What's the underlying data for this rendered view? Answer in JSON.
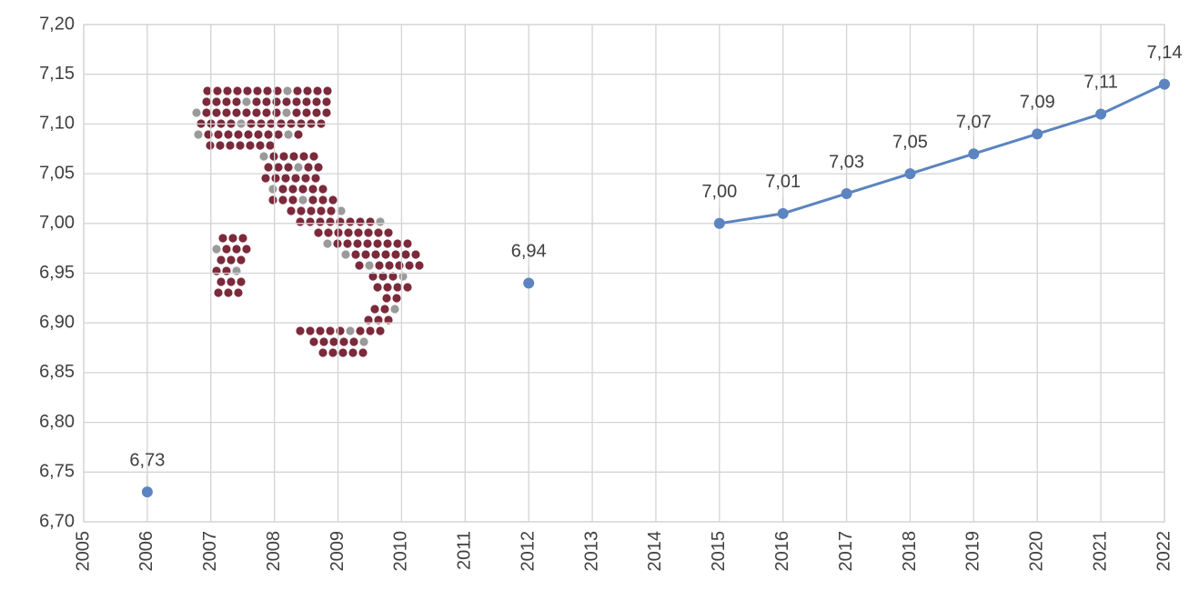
{
  "chart_data": {
    "type": "line",
    "categories": [
      "2005",
      "2006",
      "2007",
      "2008",
      "2009",
      "2010",
      "2011",
      "2012",
      "2013",
      "2014",
      "2015",
      "2016",
      "2017",
      "2018",
      "2019",
      "2020",
      "2021",
      "2022"
    ],
    "series": [
      {
        "color": "#5b84c0",
        "values": [
          null,
          6.73,
          null,
          null,
          null,
          null,
          null,
          6.94,
          null,
          null,
          7.0,
          7.01,
          7.03,
          7.05,
          7.07,
          7.09,
          7.11,
          7.14
        ],
        "value_labels": [
          null,
          "6,73",
          null,
          null,
          null,
          null,
          null,
          "6,94",
          null,
          null,
          "7,00",
          "7,01",
          "7,03",
          "7,05",
          "7,07",
          "7,09",
          "7,11",
          "7,14"
        ]
      }
    ],
    "ylim": [
      6.7,
      7.2
    ],
    "yticks": [
      {
        "value": 6.7,
        "label": "6,70"
      },
      {
        "value": 6.75,
        "label": "6,75"
      },
      {
        "value": 6.8,
        "label": "6,80"
      },
      {
        "value": 6.85,
        "label": "6,85"
      },
      {
        "value": 6.9,
        "label": "6,90"
      },
      {
        "value": 6.95,
        "label": "6,95"
      },
      {
        "value": 7.0,
        "label": "7,00"
      },
      {
        "value": 7.05,
        "label": "7,05"
      },
      {
        "value": 7.1,
        "label": "7,10"
      },
      {
        "value": 7.15,
        "label": "7,15"
      },
      {
        "value": 7.2,
        "label": "7,20"
      }
    ],
    "grid": true
  }
}
